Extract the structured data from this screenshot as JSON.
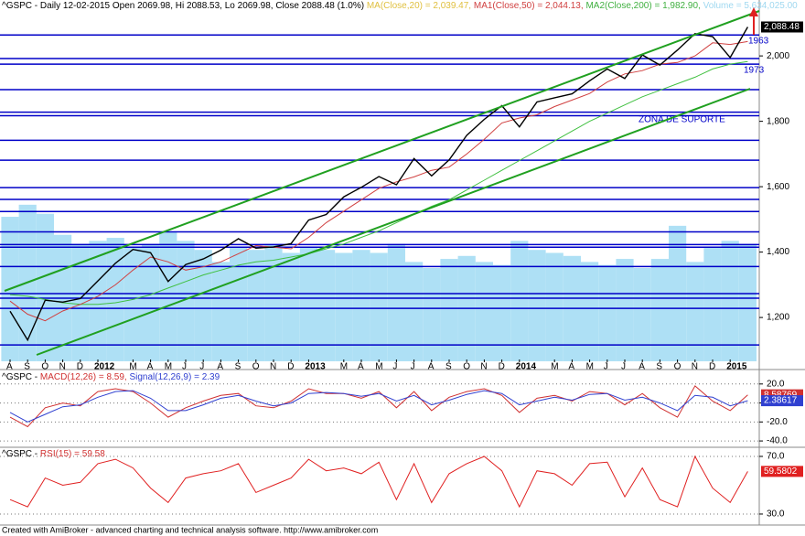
{
  "chart_data": [
    {
      "type": "line",
      "header": [
        {
          "text": "^GSPC - Daily 12-02-2015 Open 2069.98, Hi 2088.53, Lo 2069.98, Close 2088.48 (1.0%)",
          "color": "#000000"
        },
        {
          "text": "MA(Close,20) = 2,039.47,",
          "color": "#e0c040"
        },
        {
          "text": "MA1(Close,50) = 2,044.13,",
          "color": "#d04040"
        },
        {
          "text": "MA2(Close,200) = 1,982.90,",
          "color": "#40b040"
        },
        {
          "text": "Volume = 5,634,025.00",
          "color": "#9fd8f0"
        }
      ],
      "categories": [
        "A",
        "S",
        "O",
        "N",
        "D",
        "2012",
        null,
        "M",
        "A",
        "M",
        "J",
        "J",
        "A",
        "S",
        "O",
        "N",
        "D",
        "2013",
        null,
        "M",
        "A",
        "M",
        "J",
        "J",
        "A",
        "S",
        "O",
        "N",
        "D",
        "2014",
        null,
        "M",
        "A",
        "M",
        "J",
        "J",
        "A",
        "S",
        "O",
        "N",
        "D",
        "2015",
        null
      ],
      "series": [
        {
          "color": "#40c040",
          "values": [
            1270,
            1265,
            1255,
            1245,
            1240,
            1240,
            1245,
            1255,
            1270,
            1290,
            1310,
            1330,
            1345,
            1360,
            1370,
            1375,
            1385,
            1395,
            1410,
            1425,
            1445,
            1465,
            1490,
            1515,
            1540,
            1560,
            1590,
            1620,
            1650,
            1680,
            1710,
            1740,
            1770,
            1800,
            1825,
            1850,
            1875,
            1895,
            1915,
            1935,
            1960,
            1975,
            1982.9
          ]
        },
        {
          "color": "#d04040",
          "values": [
            1250,
            1210,
            1190,
            1220,
            1240,
            1265,
            1300,
            1345,
            1385,
            1370,
            1345,
            1355,
            1370,
            1395,
            1420,
            1415,
            1410,
            1445,
            1490,
            1525,
            1560,
            1595,
            1615,
            1630,
            1650,
            1660,
            1700,
            1745,
            1795,
            1810,
            1820,
            1845,
            1865,
            1885,
            1920,
            1945,
            1955,
            1975,
            1980,
            2000,
            2040,
            2035,
            2044.13
          ]
        },
        {
          "color": "#000000",
          "values": [
            1219,
            1131,
            1253,
            1247,
            1258,
            1312,
            1366,
            1408,
            1398,
            1310,
            1362,
            1379,
            1406,
            1441,
            1412,
            1416,
            1426,
            1498,
            1515,
            1569,
            1598,
            1631,
            1606,
            1686,
            1633,
            1682,
            1757,
            1806,
            1848,
            1783,
            1859,
            1872,
            1884,
            1924,
            1960,
            1931,
            2003,
            1972,
            2018,
            2068,
            2059,
            1995,
            2088.48
          ],
          "value_labels": [
            null,
            null,
            null,
            null,
            null,
            null,
            null,
            null,
            null,
            null,
            null,
            null,
            null,
            null,
            null,
            null,
            null,
            null,
            null,
            null,
            null,
            null,
            null,
            null,
            null,
            null,
            null,
            null,
            null,
            null,
            null,
            null,
            null,
            null,
            null,
            null,
            null,
            null,
            null,
            null,
            null,
            null,
            "2,088.48"
          ]
        }
      ],
      "volume": {
        "color": "#aee0f5",
        "lim": [
          0,
          12000000
        ],
        "values": [
          4800000,
          5200000,
          4900000,
          4200000,
          3900000,
          4000000,
          4100000,
          3800000,
          3900000,
          4300000,
          4000000,
          3700000,
          3300000,
          3800000,
          3700000,
          3900000,
          3600000,
          3800000,
          3700000,
          3600000,
          3700000,
          3600000,
          3900000,
          3300000,
          3100000,
          3400000,
          3500000,
          3300000,
          3200000,
          4000000,
          3700000,
          3600000,
          3500000,
          3300000,
          3200000,
          3400000,
          3100000,
          3400000,
          4500000,
          3300000,
          3800000,
          4000000,
          3900000
        ]
      },
      "levels": [
        2064,
        1992,
        1975,
        1897,
        1828,
        1817,
        1742,
        1681,
        1597,
        1561,
        1524,
        1462,
        1423,
        1415,
        1356,
        1273,
        1259,
        1228,
        1116
      ],
      "level_color": "#0000c8",
      "ylim": [
        1066,
        2171
      ],
      "yticks": [
        {
          "value": 2000,
          "label": "2,000"
        },
        {
          "value": 1800,
          "label": "1,800"
        },
        {
          "value": 1600,
          "label": "1,600"
        },
        {
          "value": 1400,
          "label": "1,400"
        },
        {
          "value": 1200,
          "label": "1,200"
        }
      ],
      "annotations": [
        "1963",
        "1973",
        "ZONA DE SUPORTE"
      ]
    },
    {
      "type": "line",
      "header": [
        {
          "text": "^GSPC - ",
          "color": "#000000"
        },
        {
          "text": "MACD(12,26) = 8.59,",
          "color": "#d03030"
        },
        {
          "text": "Signal(12,26,9) = 2.39",
          "color": "#3040d0"
        }
      ],
      "series": [
        {
          "color": "#d03030",
          "values": [
            -15,
            -25,
            -5,
            0,
            -3,
            12,
            15,
            12,
            0,
            -15,
            -5,
            2,
            8,
            10,
            -3,
            -5,
            2,
            15,
            10,
            10,
            5,
            12,
            -5,
            12,
            -8,
            6,
            12,
            15,
            8,
            -10,
            5,
            8,
            2,
            12,
            10,
            -2,
            10,
            -5,
            -15,
            18,
            2,
            -8,
            8.58769
          ]
        },
        {
          "color": "#3040d0",
          "values": [
            -10,
            -20,
            -12,
            -4,
            -2,
            6,
            12,
            13,
            5,
            -8,
            -8,
            -2,
            5,
            8,
            2,
            -3,
            0,
            10,
            11,
            10,
            7,
            10,
            2,
            8,
            -2,
            3,
            9,
            13,
            10,
            -2,
            2,
            6,
            3,
            9,
            10,
            3,
            6,
            0,
            -8,
            8,
            6,
            -3,
            2.38617
          ]
        }
      ],
      "ylim": [
        -45.7,
        33.3
      ],
      "yticks": [
        {
          "value": 20,
          "label": "20.0"
        },
        {
          "value": 0,
          "label": "0.0"
        },
        {
          "value": -20,
          "label": "-20.0"
        },
        {
          "value": -40,
          "label": "-40.0"
        }
      ]
    },
    {
      "type": "line",
      "header": [
        {
          "text": "^GSPC - ",
          "color": "#000000"
        },
        {
          "text": "RSI(15) = 59.58",
          "color": "#d03030"
        }
      ],
      "series": [
        {
          "color": "#e02020",
          "values": [
            40,
            35,
            55,
            50,
            52,
            65,
            68,
            62,
            48,
            38,
            55,
            58,
            60,
            65,
            45,
            50,
            55,
            68,
            60,
            62,
            58,
            66,
            40,
            65,
            38,
            58,
            65,
            70,
            60,
            35,
            60,
            58,
            50,
            65,
            66,
            42,
            62,
            40,
            35,
            70,
            48,
            38,
            59.5802
          ]
        }
      ],
      "ylim": [
        23,
        75.7
      ],
      "yticks": [
        {
          "value": 70,
          "label": "70.0"
        },
        {
          "value": 30,
          "label": "30.0"
        }
      ]
    }
  ],
  "footer": "Created with AmiBroker - advanced charting and technical analysis software. http://www.amibroker.com"
}
